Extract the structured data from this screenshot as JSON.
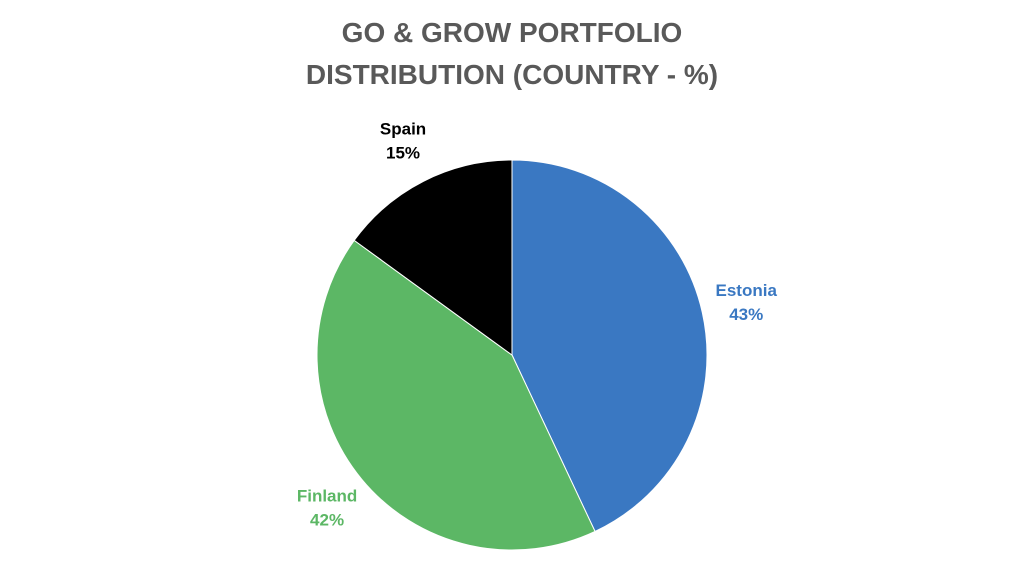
{
  "chart_data": {
    "type": "pie",
    "title": "GO & GROW PORTFOLIO DISTRIBUTION (COUNTRY - %)",
    "categories": [
      "Estonia",
      "Finland",
      "Spain"
    ],
    "values": [
      43,
      42,
      15
    ],
    "value_labels": [
      "43%",
      "42%",
      "15%"
    ],
    "colors": [
      "#3a78c2",
      "#5cb765",
      "#000000"
    ]
  }
}
